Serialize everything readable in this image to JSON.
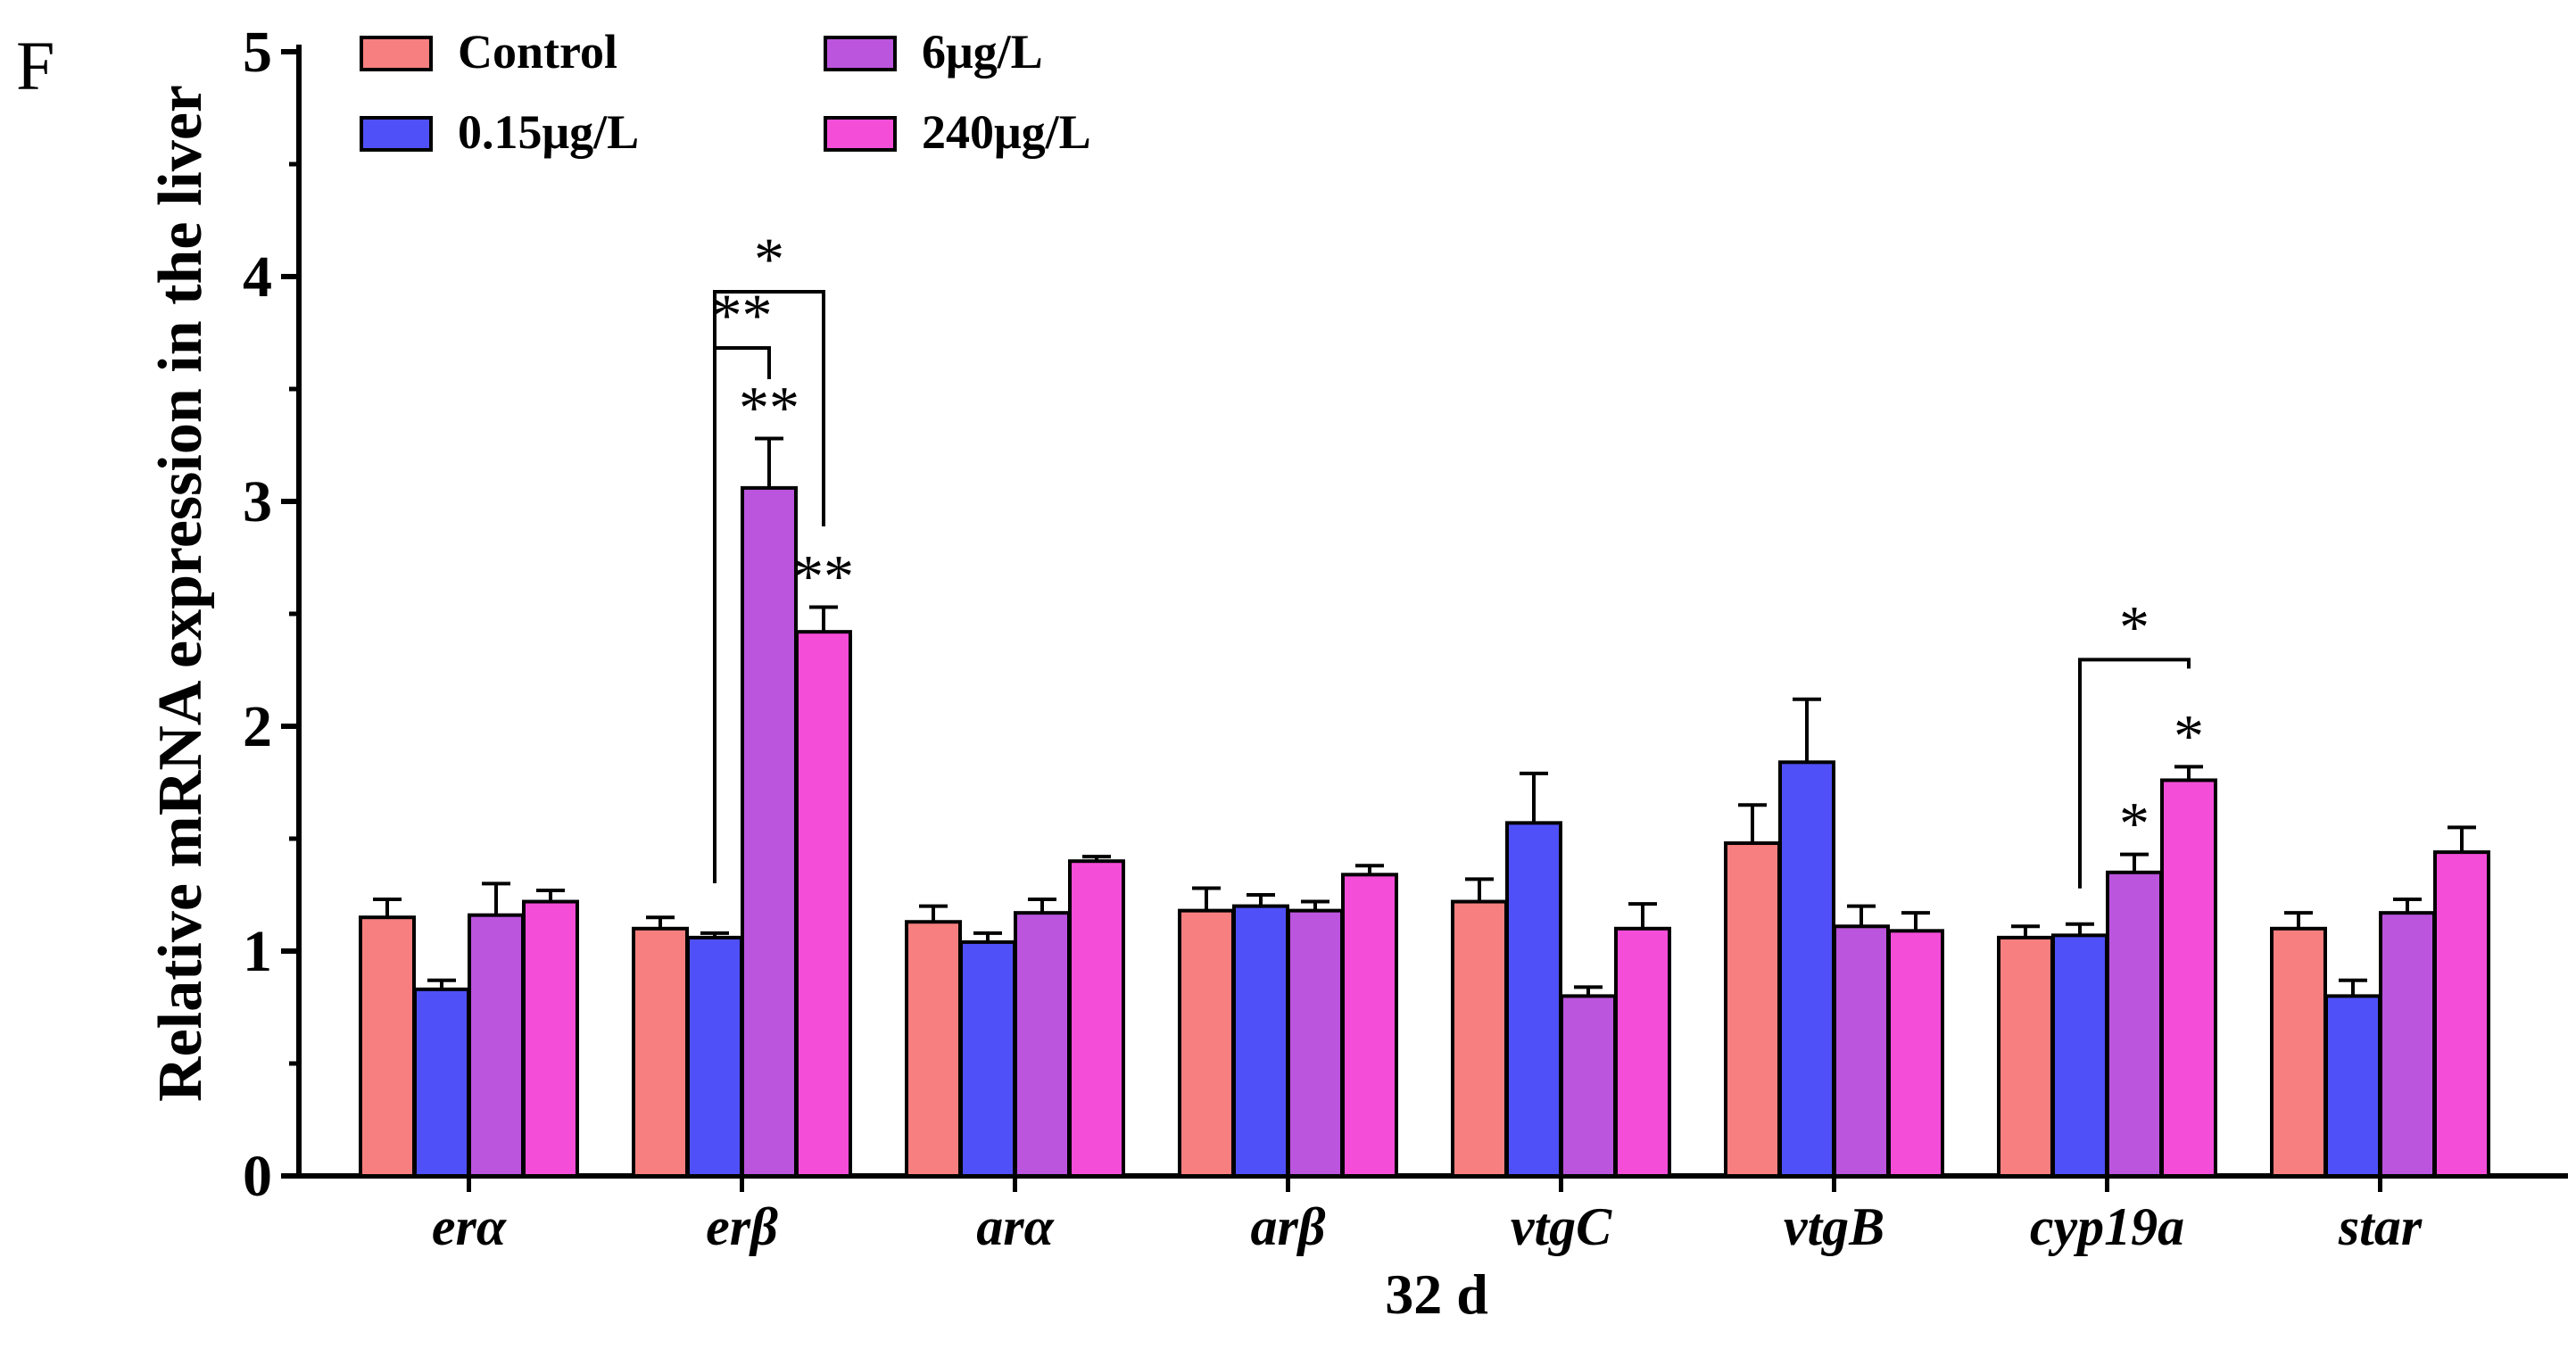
{
  "chart_data": {
    "type": "bar",
    "panel_label": "F",
    "xlabel": "32 d",
    "ylabel": "Relative mRNA expression in the liver",
    "ylim": [
      0,
      5
    ],
    "yticks": [
      "0",
      "1",
      "2",
      "3",
      "4",
      "5"
    ],
    "grid": false,
    "legend_position": "top-left",
    "categories": [
      "erα",
      "erβ",
      "arα",
      "arβ",
      "vtgC",
      "vtgB",
      "cyp19a",
      "star"
    ],
    "series": [
      {
        "name": "Control",
        "color": "#f77f7f",
        "values": [
          1.15,
          1.1,
          1.13,
          1.18,
          1.22,
          1.48,
          1.06,
          1.1
        ],
        "errors": [
          0.08,
          0.05,
          0.07,
          0.1,
          0.1,
          0.17,
          0.05,
          0.07
        ]
      },
      {
        "name": "0.15μg/L",
        "color": "#5050f8",
        "values": [
          0.83,
          1.06,
          1.04,
          1.2,
          1.57,
          1.84,
          1.07,
          0.8
        ],
        "errors": [
          0.04,
          0.02,
          0.04,
          0.05,
          0.22,
          0.28,
          0.05,
          0.07
        ]
      },
      {
        "name": "6μg/L",
        "color": "#bb55dd",
        "values": [
          1.16,
          3.06,
          1.17,
          1.18,
          0.8,
          1.11,
          1.35,
          1.17
        ],
        "errors": [
          0.14,
          0.22,
          0.06,
          0.04,
          0.04,
          0.09,
          0.08,
          0.06
        ]
      },
      {
        "name": "240μg/L",
        "color": "#f44dd8",
        "values": [
          1.22,
          2.42,
          1.4,
          1.34,
          1.1,
          1.09,
          1.76,
          1.44
        ],
        "errors": [
          0.05,
          0.11,
          0.02,
          0.04,
          0.11,
          0.08,
          0.06,
          0.11
        ]
      }
    ],
    "annotations": [
      {
        "category": "erβ",
        "series": "6μg/L",
        "text": "**",
        "kind": "bar"
      },
      {
        "category": "erβ",
        "series": "240μg/L",
        "text": "**",
        "kind": "bar"
      },
      {
        "category": "erβ",
        "from": "0.15μg/L",
        "to": "6μg/L",
        "text": "**",
        "kind": "bracket"
      },
      {
        "category": "erβ",
        "from": "0.15μg/L",
        "to": "240μg/L",
        "text": "*",
        "kind": "bracket"
      },
      {
        "category": "cyp19a",
        "series": "6μg/L",
        "text": "*",
        "kind": "bar"
      },
      {
        "category": "cyp19a",
        "series": "240μg/L",
        "text": "*",
        "kind": "bar"
      },
      {
        "category": "cyp19a",
        "from": "0.15μg/L",
        "to": "240μg/L",
        "text": "*",
        "kind": "bracket"
      }
    ]
  }
}
